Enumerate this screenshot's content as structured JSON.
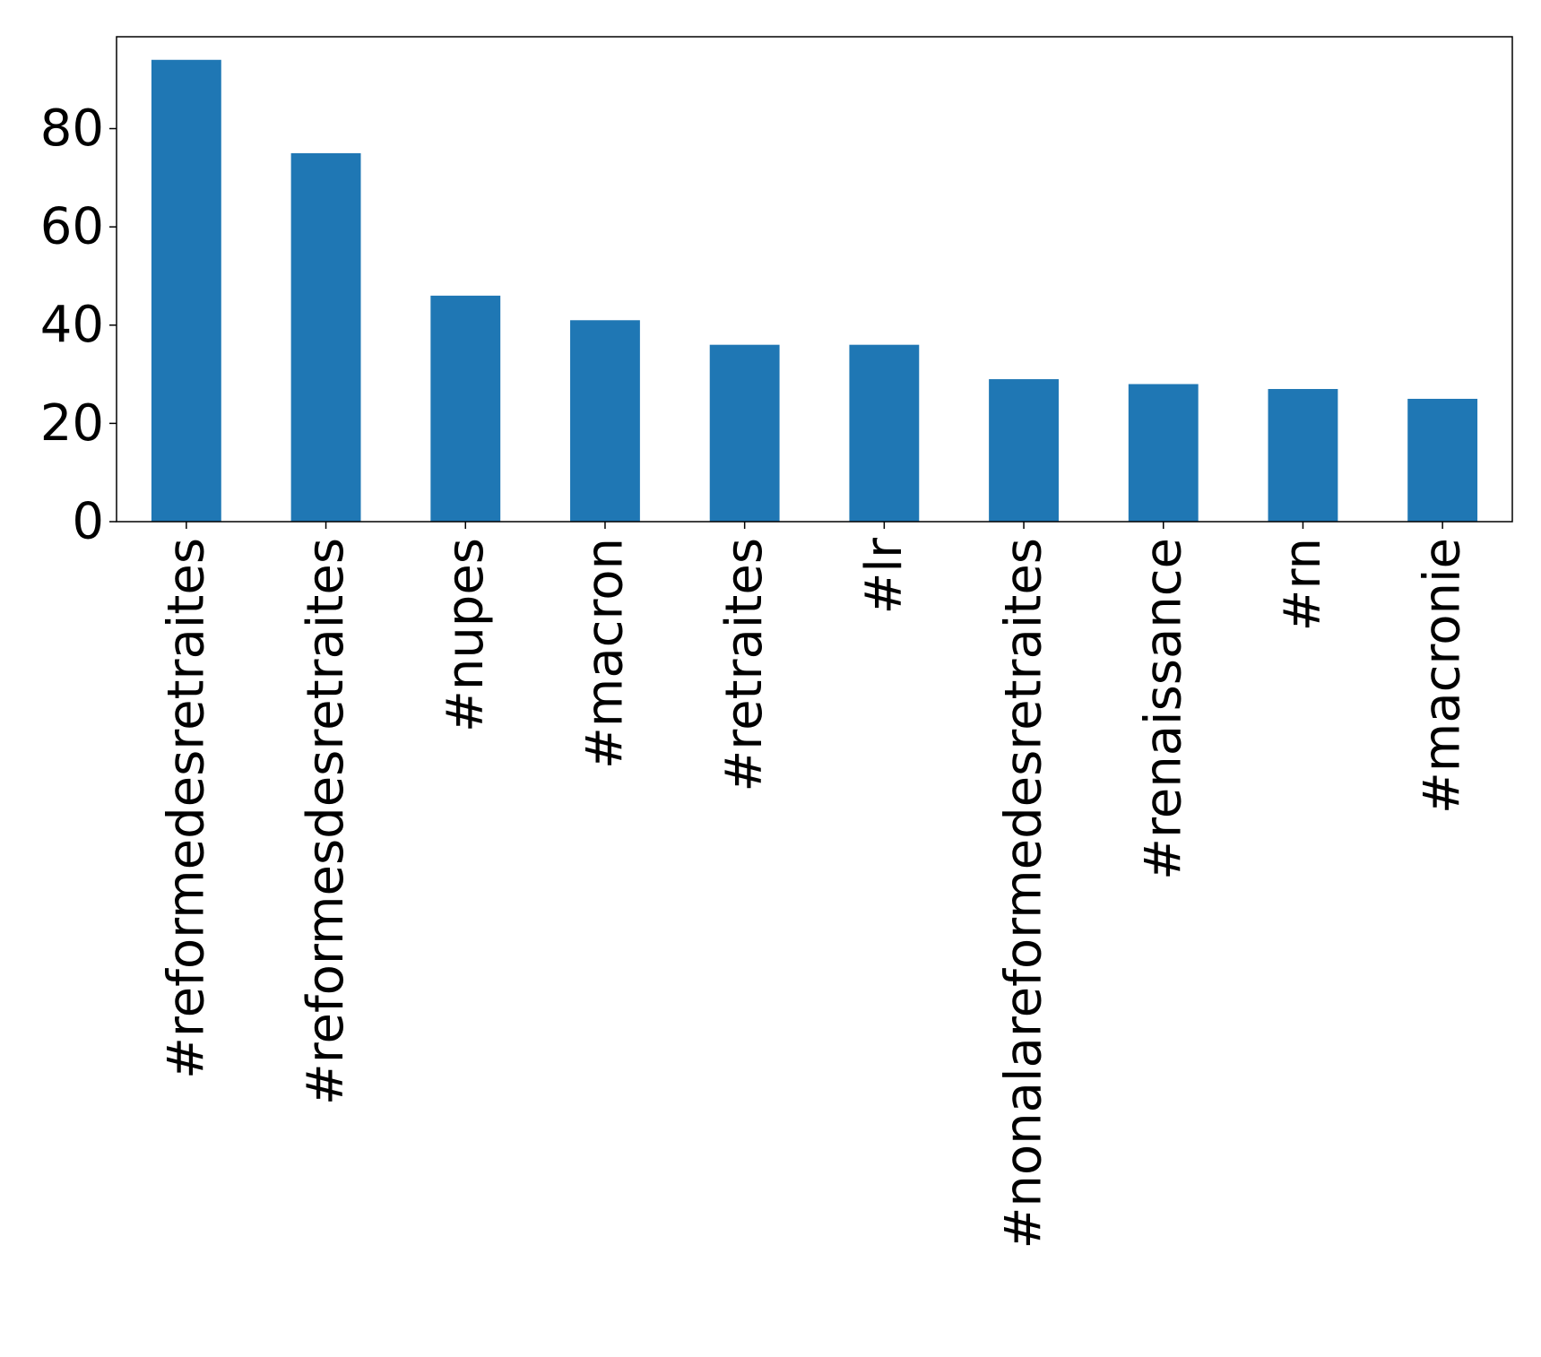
{
  "chart_data": {
    "type": "bar",
    "title": "",
    "xlabel": "",
    "ylabel": "",
    "categories": [
      "#reformedesretraites",
      "#reformesdesretraites",
      "#nupes",
      "#macron",
      "#retraites",
      "#lr",
      "#nonalareformedesretraites",
      "#renaissance",
      "#rn",
      "#macronie"
    ],
    "values": [
      94,
      75,
      46,
      41,
      36,
      36,
      29,
      28,
      27,
      25
    ],
    "ylim": [
      0,
      98.7
    ],
    "yticks": [
      0,
      20,
      40,
      60,
      80
    ],
    "ytick_labels": [
      "0",
      "20",
      "40",
      "60",
      "80"
    ],
    "bar_color": "#1f77b4",
    "grid": false,
    "legend": "none"
  }
}
